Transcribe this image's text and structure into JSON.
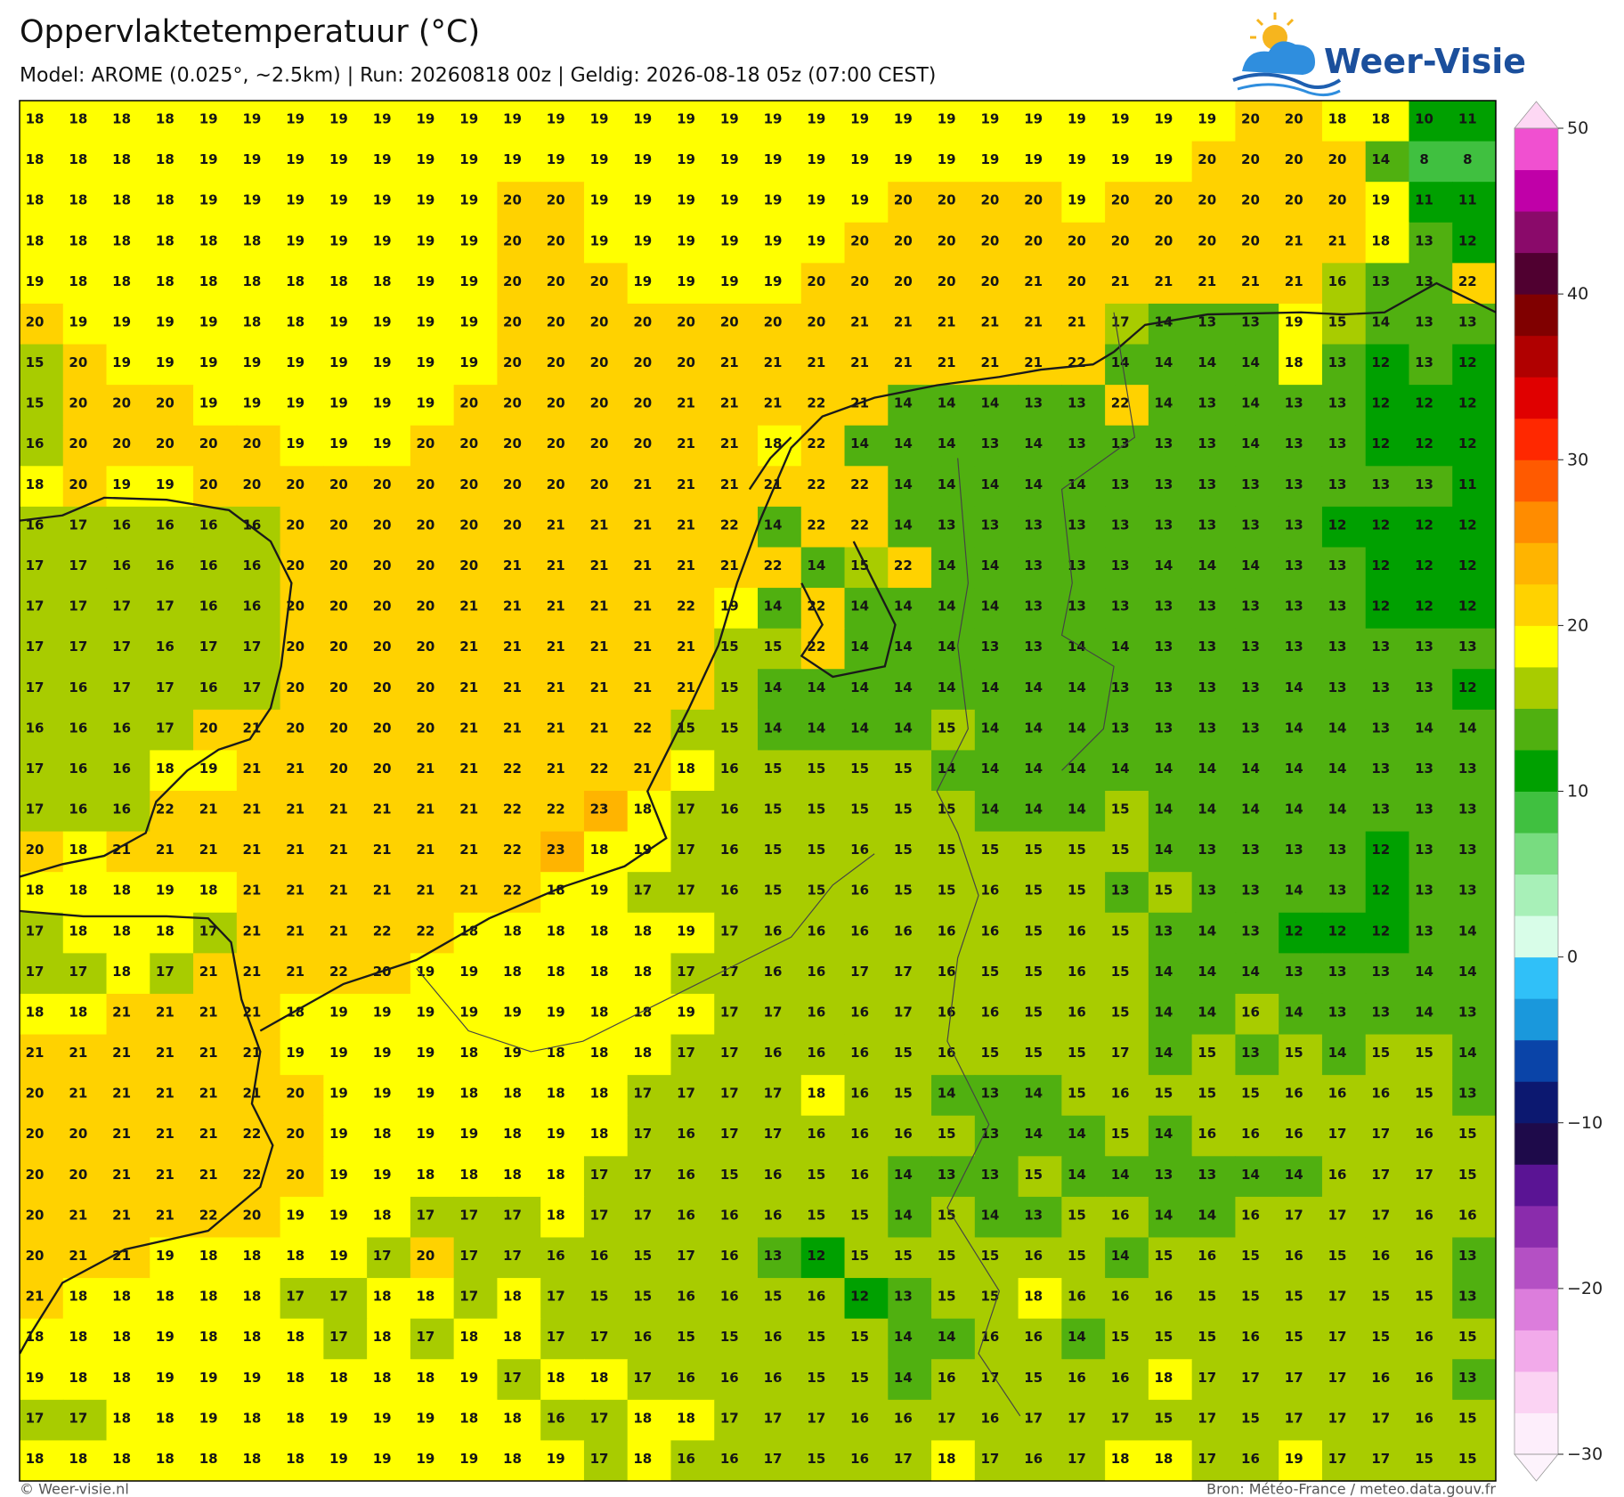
{
  "header": {
    "title": "Oppervlaktetemperatuur (°C)",
    "subtitle": "Model: AROME (0.025°, ~2.5km)  |  Run: 20260818 00z  |  Geldig: 2026-08-18 05z (07:00 CEST)",
    "logo": "Weer-Visie"
  },
  "footer": {
    "left": "© Weer-visie.nl",
    "right": "Bron: Météo-France / meteo.data.gouv.fr"
  },
  "map": {
    "values": [
      [
        18,
        18,
        18,
        18,
        19,
        19,
        19,
        19,
        19,
        19,
        19,
        19,
        19,
        19,
        19,
        19,
        19,
        19,
        19,
        19,
        19,
        19,
        19,
        19,
        19,
        19,
        19,
        19,
        20,
        20,
        18,
        18,
        10,
        11
      ],
      [
        18,
        18,
        18,
        18,
        19,
        19,
        19,
        19,
        19,
        19,
        19,
        19,
        19,
        19,
        19,
        19,
        19,
        19,
        19,
        19,
        19,
        19,
        19,
        19,
        19,
        19,
        19,
        20,
        20,
        20,
        20,
        14,
        8,
        8
      ],
      [
        18,
        18,
        18,
        18,
        19,
        19,
        19,
        19,
        19,
        19,
        19,
        20,
        20,
        19,
        19,
        19,
        19,
        19,
        19,
        19,
        20,
        20,
        20,
        20,
        19,
        20,
        20,
        20,
        20,
        20,
        20,
        19,
        11,
        11
      ],
      [
        18,
        18,
        18,
        18,
        18,
        18,
        19,
        19,
        19,
        19,
        19,
        20,
        20,
        19,
        19,
        19,
        19,
        19,
        19,
        20,
        20,
        20,
        20,
        20,
        20,
        20,
        20,
        20,
        20,
        21,
        21,
        18,
        13,
        12
      ],
      [
        19,
        18,
        18,
        18,
        18,
        18,
        18,
        18,
        18,
        19,
        19,
        20,
        20,
        20,
        19,
        19,
        19,
        19,
        20,
        20,
        20,
        20,
        20,
        21,
        20,
        21,
        21,
        21,
        21,
        21,
        16,
        13,
        13,
        22
      ],
      [
        20,
        19,
        19,
        19,
        19,
        18,
        18,
        19,
        19,
        19,
        19,
        20,
        20,
        20,
        20,
        20,
        20,
        20,
        20,
        21,
        21,
        21,
        21,
        21,
        21,
        17,
        14,
        13,
        13,
        19,
        15,
        14,
        13,
        13
      ],
      [
        15,
        20,
        19,
        19,
        19,
        19,
        19,
        19,
        19,
        19,
        19,
        20,
        20,
        20,
        20,
        20,
        21,
        21,
        21,
        21,
        21,
        21,
        21,
        21,
        22,
        14,
        14,
        14,
        14,
        18,
        13,
        12,
        13,
        12
      ],
      [
        15,
        20,
        20,
        20,
        19,
        19,
        19,
        19,
        19,
        19,
        20,
        20,
        20,
        20,
        20,
        21,
        21,
        21,
        22,
        21,
        14,
        14,
        14,
        13,
        13,
        22,
        14,
        13,
        14,
        13,
        13,
        12,
        12,
        12
      ],
      [
        16,
        20,
        20,
        20,
        20,
        20,
        19,
        19,
        19,
        20,
        20,
        20,
        20,
        20,
        20,
        21,
        21,
        18,
        22,
        14,
        14,
        14,
        13,
        14,
        13,
        13,
        13,
        13,
        14,
        13,
        13,
        12,
        12,
        12
      ],
      [
        18,
        20,
        19,
        19,
        20,
        20,
        20,
        20,
        20,
        20,
        20,
        20,
        20,
        20,
        21,
        21,
        21,
        21,
        22,
        22,
        14,
        14,
        14,
        14,
        14,
        13,
        13,
        13,
        13,
        13,
        13,
        13,
        13,
        11
      ],
      [
        16,
        17,
        16,
        16,
        16,
        16,
        20,
        20,
        20,
        20,
        20,
        20,
        21,
        21,
        21,
        21,
        22,
        14,
        22,
        22,
        14,
        13,
        13,
        13,
        13,
        13,
        13,
        13,
        13,
        13,
        12,
        12,
        12,
        12
      ],
      [
        17,
        17,
        16,
        16,
        16,
        16,
        20,
        20,
        20,
        20,
        20,
        21,
        21,
        21,
        21,
        21,
        21,
        22,
        14,
        15,
        22,
        14,
        14,
        13,
        13,
        13,
        14,
        14,
        14,
        13,
        13,
        12,
        12,
        12
      ],
      [
        17,
        17,
        17,
        17,
        16,
        16,
        20,
        20,
        20,
        20,
        21,
        21,
        21,
        21,
        21,
        22,
        19,
        14,
        22,
        14,
        14,
        14,
        14,
        13,
        13,
        13,
        13,
        13,
        13,
        13,
        13,
        12,
        12,
        12
      ],
      [
        17,
        17,
        17,
        16,
        17,
        17,
        20,
        20,
        20,
        20,
        21,
        21,
        21,
        21,
        21,
        21,
        15,
        15,
        22,
        14,
        14,
        14,
        13,
        13,
        14,
        14,
        13,
        13,
        13,
        13,
        13,
        13,
        13,
        13
      ],
      [
        17,
        16,
        17,
        17,
        16,
        17,
        20,
        20,
        20,
        20,
        21,
        21,
        21,
        21,
        21,
        21,
        15,
        14,
        14,
        14,
        14,
        14,
        14,
        14,
        14,
        13,
        13,
        13,
        13,
        14,
        13,
        13,
        13,
        12
      ],
      [
        16,
        16,
        16,
        17,
        20,
        21,
        20,
        20,
        20,
        20,
        21,
        21,
        21,
        21,
        22,
        15,
        15,
        14,
        14,
        14,
        14,
        15,
        14,
        14,
        14,
        13,
        13,
        13,
        13,
        14,
        14,
        13,
        14,
        14
      ],
      [
        17,
        16,
        16,
        18,
        19,
        21,
        21,
        20,
        20,
        21,
        21,
        22,
        21,
        22,
        21,
        18,
        16,
        15,
        15,
        15,
        15,
        14,
        14,
        14,
        14,
        14,
        14,
        14,
        14,
        14,
        14,
        13,
        13,
        13
      ],
      [
        17,
        16,
        16,
        22,
        21,
        21,
        21,
        21,
        21,
        21,
        21,
        22,
        22,
        23,
        18,
        17,
        16,
        15,
        15,
        15,
        15,
        15,
        14,
        14,
        14,
        15,
        14,
        14,
        14,
        14,
        14,
        13,
        13,
        13
      ],
      [
        20,
        18,
        21,
        21,
        21,
        21,
        21,
        21,
        21,
        21,
        21,
        22,
        23,
        18,
        19,
        17,
        16,
        15,
        15,
        16,
        15,
        15,
        15,
        15,
        15,
        15,
        14,
        13,
        13,
        13,
        13,
        12,
        13,
        13
      ],
      [
        18,
        18,
        18,
        19,
        18,
        21,
        21,
        21,
        21,
        21,
        21,
        22,
        18,
        19,
        17,
        17,
        16,
        15,
        15,
        16,
        15,
        15,
        16,
        15,
        15,
        13,
        15,
        13,
        13,
        14,
        13,
        12,
        13,
        13
      ],
      [
        17,
        18,
        18,
        18,
        17,
        21,
        21,
        21,
        22,
        22,
        18,
        18,
        18,
        18,
        18,
        19,
        17,
        16,
        16,
        16,
        16,
        16,
        16,
        15,
        16,
        15,
        13,
        14,
        13,
        12,
        12,
        12,
        13,
        14
      ],
      [
        17,
        17,
        18,
        17,
        21,
        21,
        21,
        22,
        20,
        19,
        19,
        18,
        18,
        18,
        18,
        17,
        17,
        16,
        16,
        17,
        17,
        16,
        15,
        15,
        16,
        15,
        14,
        14,
        14,
        13,
        13,
        13,
        14,
        14
      ],
      [
        18,
        18,
        21,
        21,
        21,
        21,
        18,
        19,
        19,
        19,
        19,
        19,
        19,
        18,
        18,
        19,
        17,
        17,
        16,
        16,
        17,
        16,
        16,
        15,
        16,
        15,
        14,
        14,
        16,
        14,
        13,
        13,
        14,
        13
      ],
      [
        21,
        21,
        21,
        21,
        21,
        21,
        19,
        19,
        19,
        19,
        18,
        19,
        18,
        18,
        18,
        17,
        17,
        16,
        16,
        16,
        15,
        16,
        15,
        15,
        15,
        17,
        14,
        15,
        13,
        15,
        14,
        15,
        15,
        14
      ],
      [
        20,
        21,
        21,
        21,
        21,
        21,
        20,
        19,
        19,
        19,
        18,
        18,
        18,
        18,
        17,
        17,
        17,
        17,
        18,
        16,
        15,
        14,
        13,
        14,
        15,
        16,
        15,
        15,
        15,
        16,
        16,
        16,
        15,
        13
      ],
      [
        20,
        20,
        21,
        21,
        21,
        22,
        20,
        19,
        18,
        19,
        19,
        18,
        19,
        18,
        17,
        16,
        17,
        17,
        16,
        16,
        16,
        15,
        13,
        14,
        14,
        15,
        14,
        16,
        16,
        16,
        17,
        17,
        16,
        15
      ],
      [
        20,
        20,
        21,
        21,
        21,
        22,
        20,
        19,
        19,
        18,
        18,
        18,
        18,
        17,
        17,
        16,
        15,
        16,
        15,
        16,
        14,
        13,
        13,
        15,
        14,
        14,
        13,
        13,
        14,
        14,
        16,
        17,
        17,
        15
      ],
      [
        20,
        21,
        21,
        21,
        22,
        20,
        19,
        19,
        18,
        17,
        17,
        17,
        18,
        17,
        17,
        16,
        16,
        16,
        15,
        15,
        14,
        15,
        14,
        13,
        15,
        16,
        14,
        14,
        16,
        17,
        17,
        17,
        16,
        16
      ],
      [
        20,
        21,
        21,
        19,
        18,
        18,
        18,
        19,
        17,
        20,
        17,
        17,
        16,
        16,
        15,
        17,
        16,
        13,
        12,
        15,
        15,
        15,
        15,
        16,
        15,
        14,
        15,
        16,
        15,
        16,
        15,
        16,
        16,
        13
      ],
      [
        21,
        18,
        18,
        18,
        18,
        18,
        17,
        17,
        18,
        18,
        17,
        18,
        17,
        15,
        15,
        16,
        16,
        15,
        16,
        12,
        13,
        15,
        15,
        18,
        16,
        16,
        16,
        15,
        15,
        15,
        17,
        15,
        15,
        13
      ],
      [
        18,
        18,
        18,
        19,
        18,
        18,
        18,
        17,
        18,
        17,
        18,
        18,
        17,
        17,
        16,
        15,
        15,
        16,
        15,
        15,
        14,
        14,
        16,
        16,
        14,
        15,
        15,
        15,
        16,
        15,
        17,
        15,
        16,
        15
      ],
      [
        19,
        18,
        18,
        19,
        19,
        19,
        18,
        18,
        18,
        18,
        19,
        17,
        18,
        18,
        17,
        16,
        16,
        16,
        15,
        15,
        14,
        16,
        17,
        15,
        16,
        16,
        18,
        17,
        17,
        17,
        17,
        16,
        16,
        13
      ],
      [
        17,
        17,
        18,
        18,
        19,
        18,
        18,
        19,
        19,
        19,
        18,
        18,
        16,
        17,
        18,
        18,
        17,
        17,
        17,
        16,
        16,
        17,
        16,
        17,
        17,
        17,
        15,
        17,
        15,
        17,
        17,
        17,
        16,
        15
      ],
      [
        18,
        18,
        18,
        18,
        18,
        18,
        18,
        19,
        19,
        19,
        19,
        18,
        19,
        17,
        18,
        16,
        16,
        17,
        15,
        16,
        17,
        18,
        17,
        16,
        17,
        18,
        18,
        17,
        16,
        19,
        17,
        17,
        15,
        15
      ]
    ]
  },
  "colorbar": {
    "lim": [
      -30,
      50
    ],
    "ticks": [
      50,
      40,
      30,
      20,
      10,
      0,
      {
        "value": -10,
        "label": "−10"
      },
      {
        "value": -20,
        "label": "−20"
      },
      {
        "value": -30,
        "label": "−30"
      }
    ],
    "colors": [
      "#fdeefb",
      "#fbd3f3",
      "#f2aaea",
      "#dc7ddc",
      "#b450c4",
      "#8a2cac",
      "#5a1494",
      "#1e0a4a",
      "#0c1870",
      "#0a44a8",
      "#1a98dc",
      "#30c0f8",
      "#d8fde8",
      "#a8f0b8",
      "#78dc80",
      "#40c040",
      "#00a000",
      "#50b010",
      "#a8cc00",
      "#ffff00",
      "#ffd200",
      "#ffb400",
      "#ff8c00",
      "#ff5a00",
      "#ff2800",
      "#e00000",
      "#b00000",
      "#800000",
      "#500030",
      "#8a0a6a",
      "#c000a8",
      "#f050d0"
    ],
    "under": "#fdf3fc",
    "over": "#fdd8f4"
  }
}
